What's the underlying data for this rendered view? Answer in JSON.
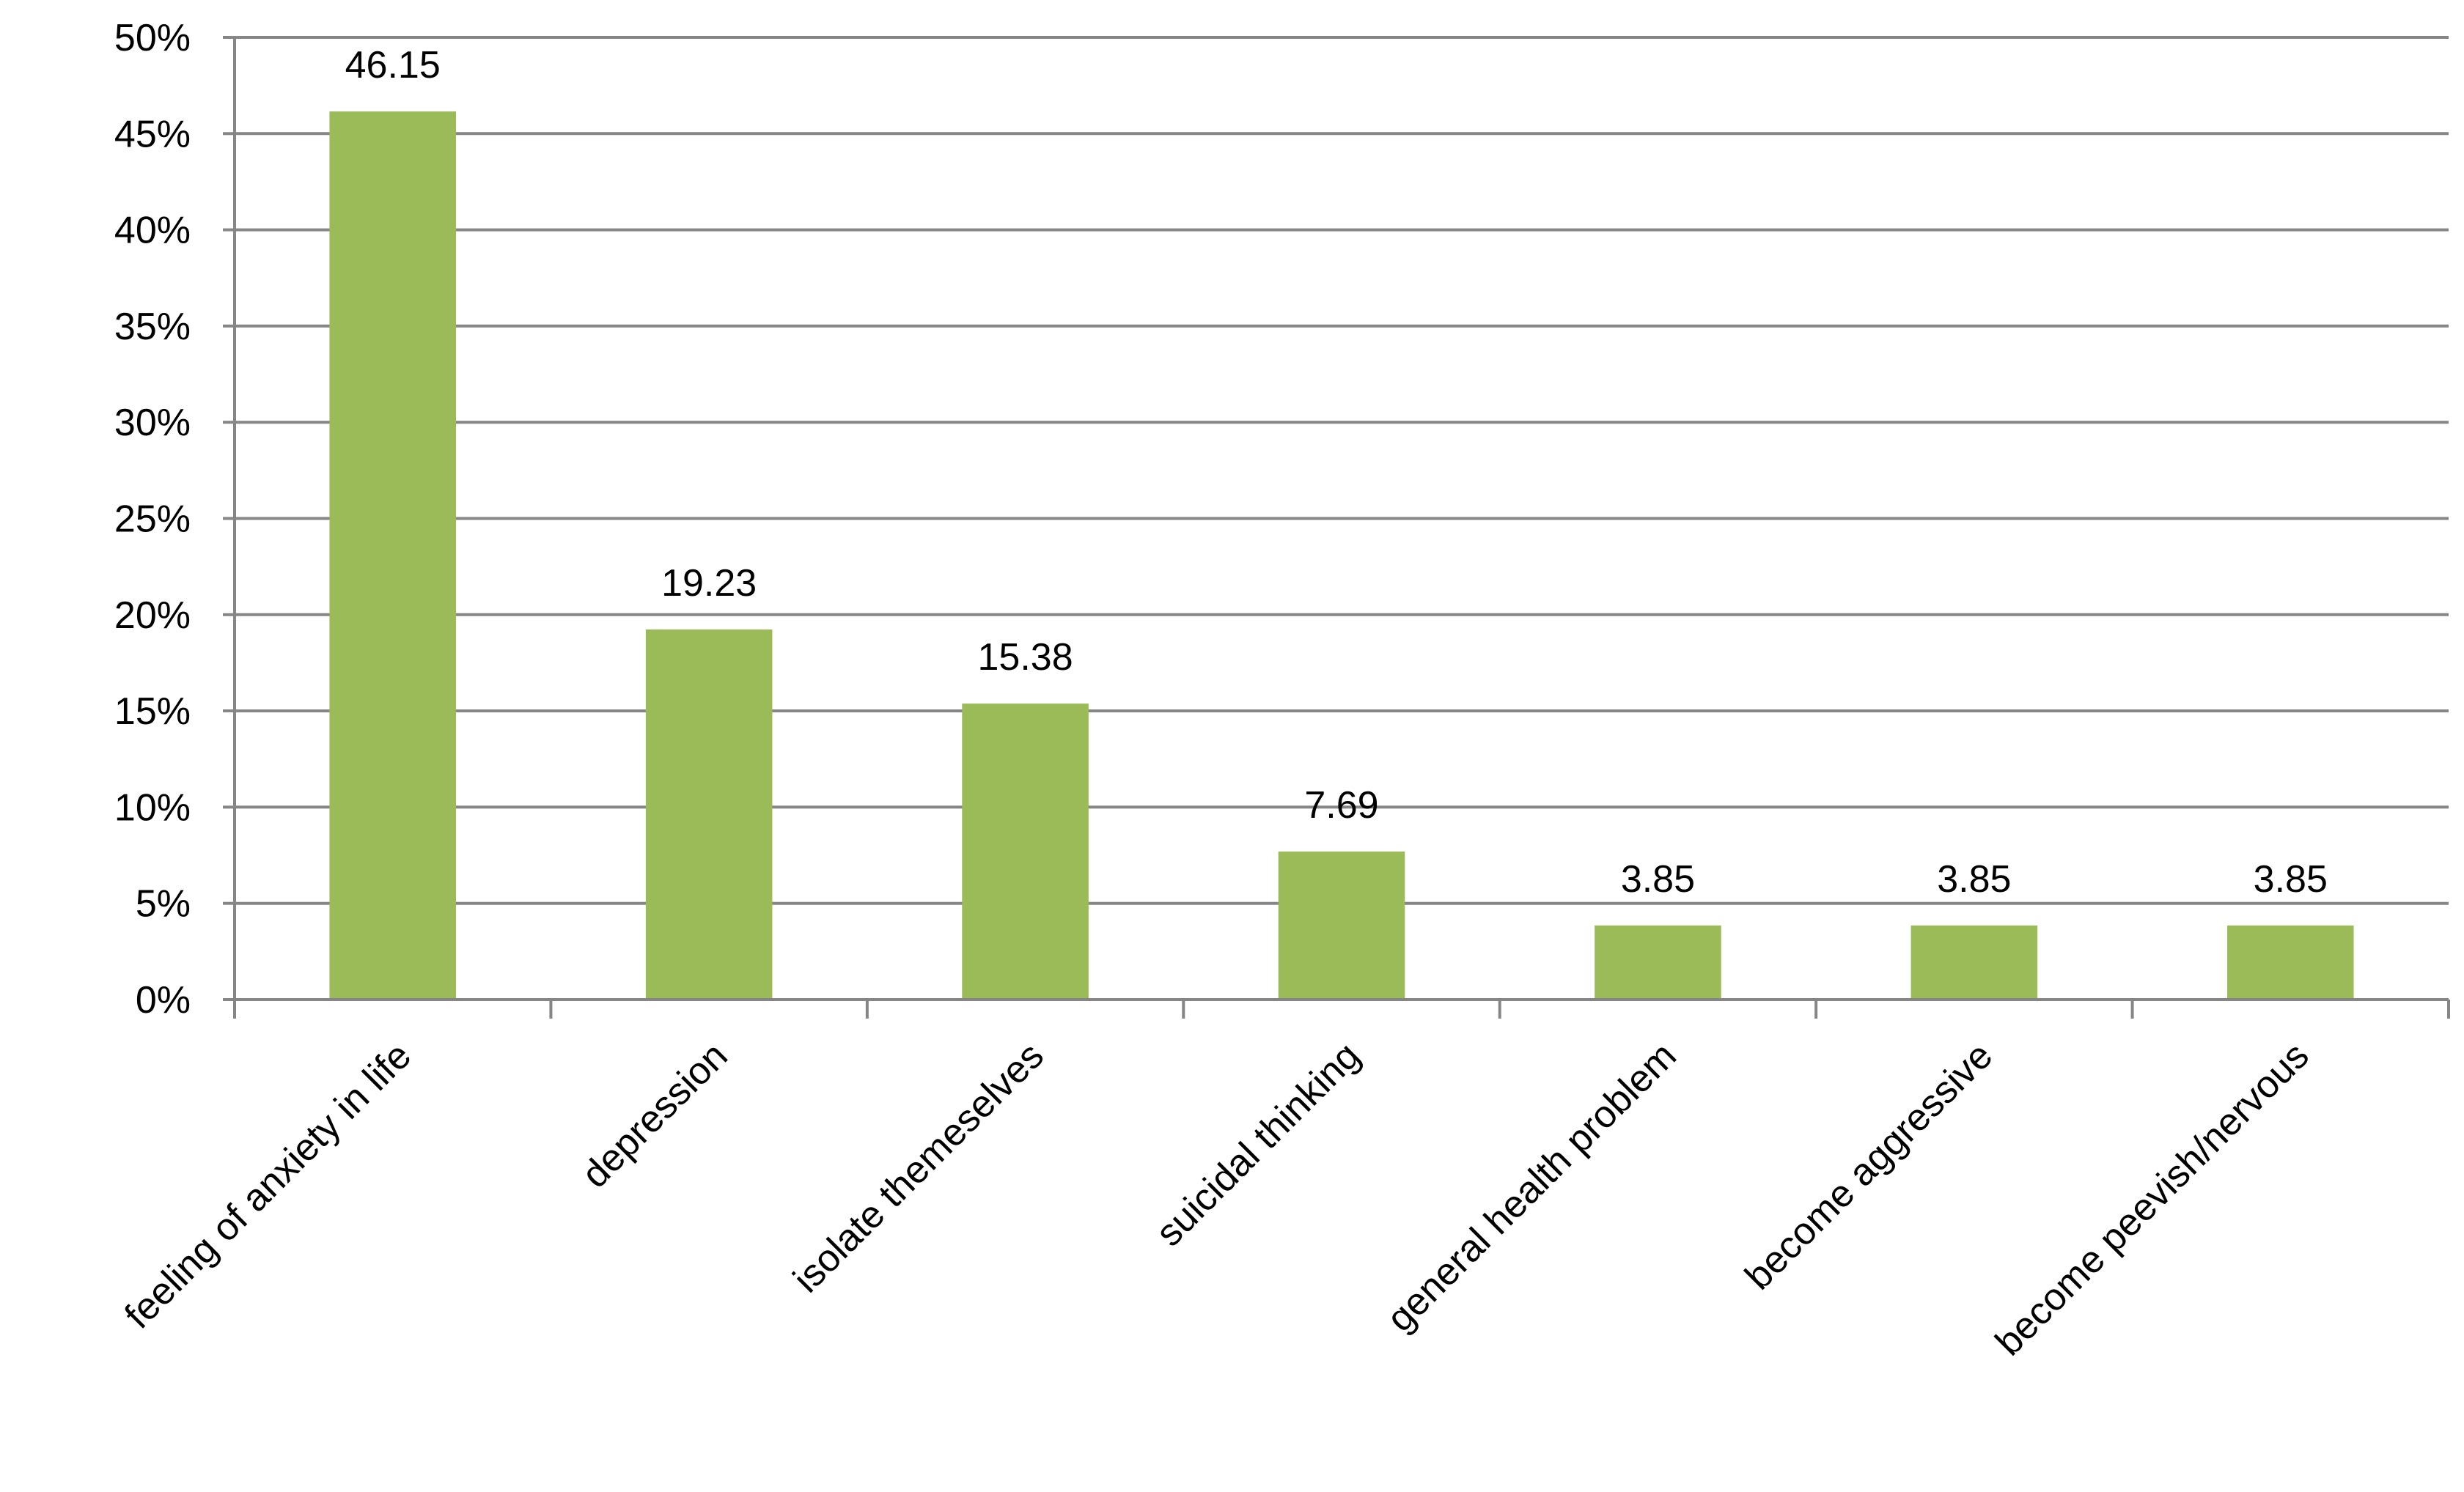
{
  "chart_data": {
    "type": "bar",
    "categories": [
      "feeling of anxiety in life",
      "depression",
      "isolate themeselves",
      "suicidal thinking",
      "general health problem",
      "become aggressive",
      "become peevish/nervous"
    ],
    "values": [
      46.15,
      19.23,
      15.38,
      7.69,
      3.85,
      3.85,
      3.85
    ],
    "data_labels": [
      "46.15",
      "19.23",
      "15.38",
      "7.69",
      "3.85",
      "3.85",
      "3.85"
    ],
    "y_ticks": [
      "0%",
      "5%",
      "10%",
      "15%",
      "20%",
      "25%",
      "30%",
      "35%",
      "40%",
      "45%",
      "50%"
    ],
    "ylim": [
      0,
      50
    ],
    "title": "",
    "xlabel": "",
    "ylabel": "",
    "grid": true,
    "legend": "none",
    "bar_color": "#9BBB59",
    "grid_color": "#868686",
    "axis_color": "#868686"
  }
}
